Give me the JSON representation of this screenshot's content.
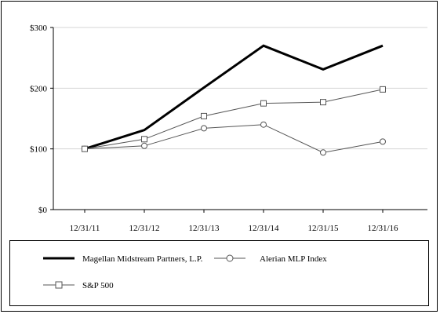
{
  "chart_data": {
    "type": "line",
    "title": "",
    "xlabel": "",
    "ylabel": "",
    "categories": [
      "12/31/11",
      "12/31/12",
      "12/31/13",
      "12/31/14",
      "12/31/15",
      "12/31/16"
    ],
    "ylim": [
      0,
      300
    ],
    "yticks": [
      0,
      100,
      200,
      300
    ],
    "ytick_labels": [
      "$0",
      "$100",
      "$200",
      "$300"
    ],
    "grid": "horizontal",
    "legend_position": "bottom",
    "series": [
      {
        "name": "Magellan Midstream Partners, L.P.",
        "values": [
          100,
          131,
          201,
          270,
          231,
          270
        ],
        "color": "#000000",
        "marker": "none",
        "line_width": 3
      },
      {
        "name": "Alerian MLP Index",
        "values": [
          100,
          105,
          134,
          140,
          94,
          112
        ],
        "color": "#555555",
        "marker": "circle",
        "line_width": 1
      },
      {
        "name": "S&P 500",
        "values": [
          100,
          116,
          154,
          175,
          177,
          198
        ],
        "color": "#555555",
        "marker": "square",
        "line_width": 1
      }
    ]
  }
}
